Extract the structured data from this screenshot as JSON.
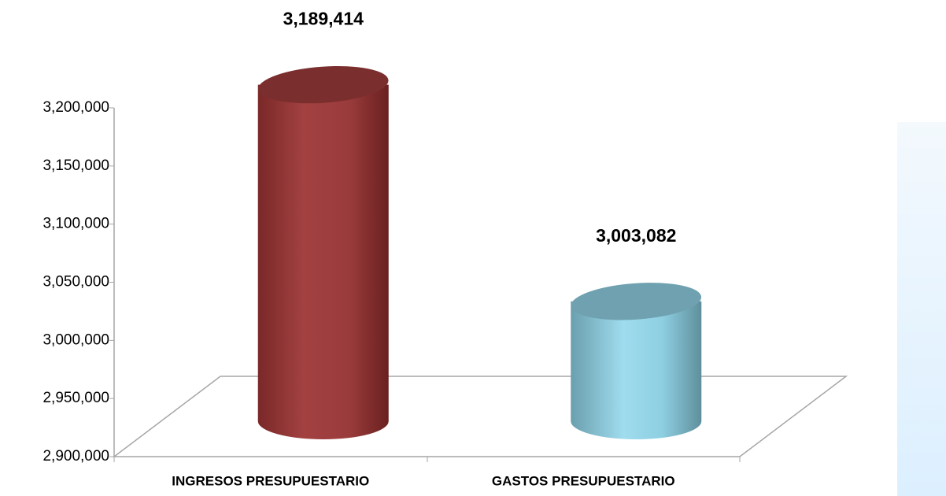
{
  "chart_data": {
    "type": "bar",
    "categories": [
      "INGRESOS PRESUPUESTARIO",
      "GASTOS PRESUPUESTARIO"
    ],
    "values": [
      3189414,
      3003082
    ],
    "value_labels": [
      "3,189,414",
      "3,003,082"
    ],
    "colors": [
      "#9e3b3b",
      "#8ecfe2"
    ],
    "ylim": [
      2900000,
      3200000
    ],
    "yticks": [
      {
        "value": 2900000,
        "label": "2,900,000"
      },
      {
        "value": 2950000,
        "label": "2,950,000"
      },
      {
        "value": 3000000,
        "label": "3,000,000"
      },
      {
        "value": 3050000,
        "label": "3,050,000"
      },
      {
        "value": 3100000,
        "label": "3,100,000"
      },
      {
        "value": 3150000,
        "label": "3,150,000"
      },
      {
        "value": 3200000,
        "label": "3,200,000"
      }
    ]
  }
}
